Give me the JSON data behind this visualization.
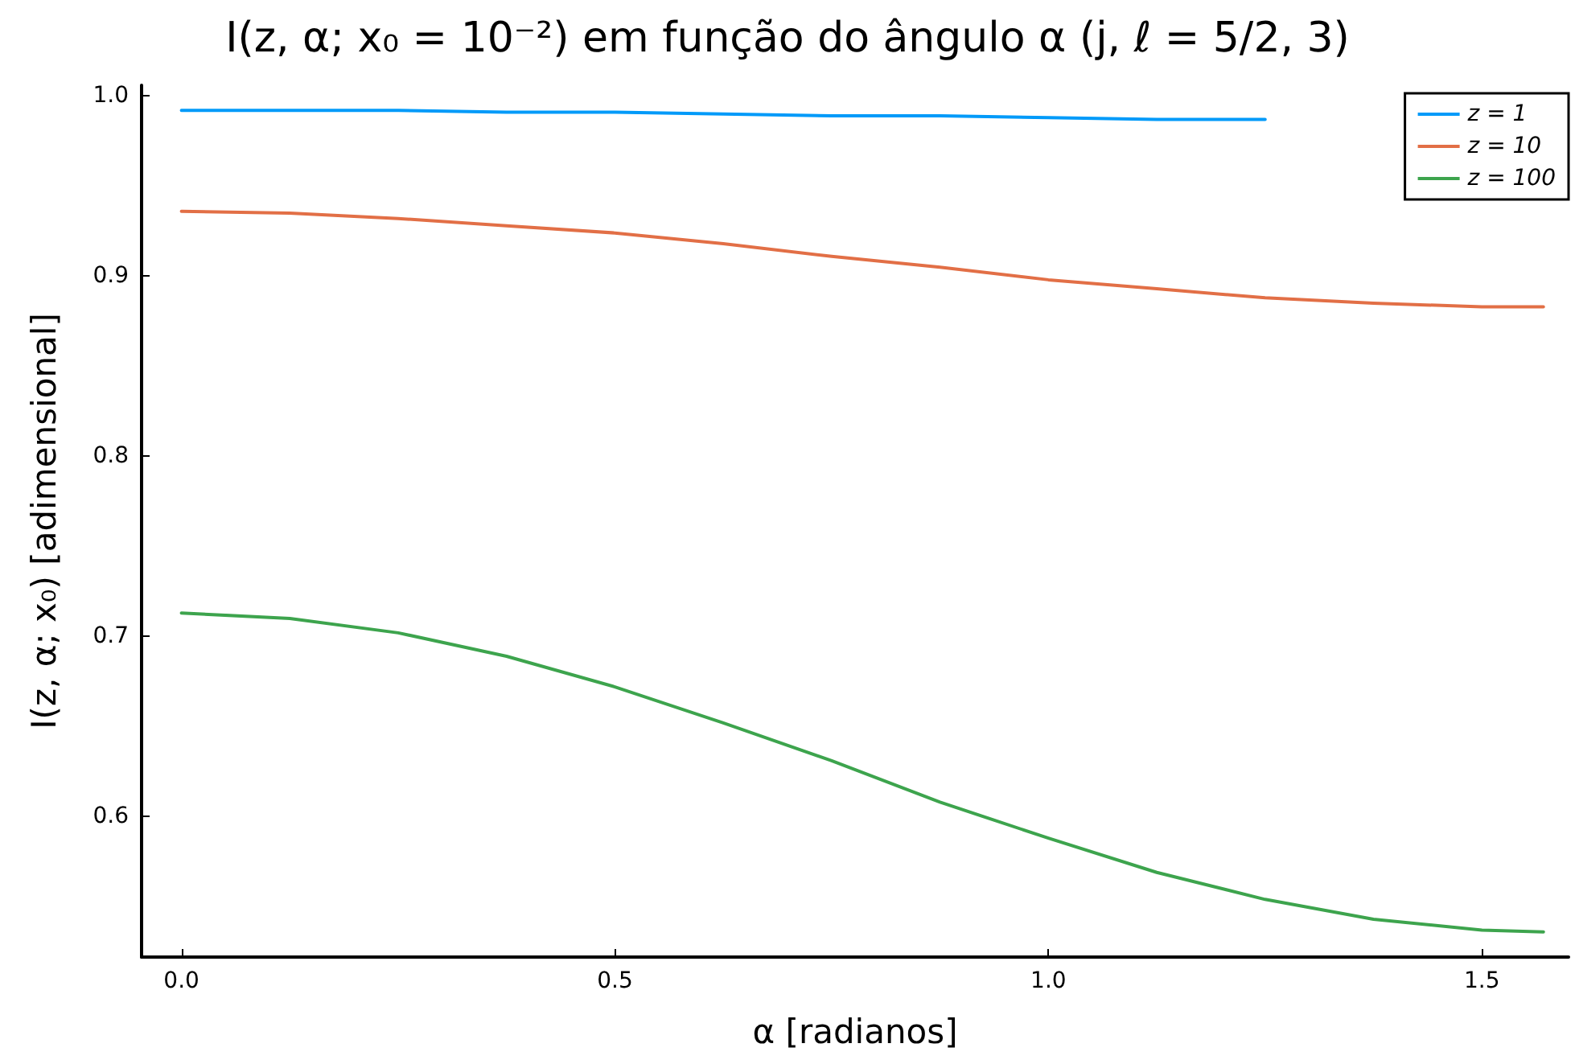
{
  "chart_data": {
    "type": "line",
    "title": "I(z, α; x₀ = 10⁻²) em função do ângulo α (j, ℓ = 5/2, 3)",
    "xlabel": "α [radianos]",
    "ylabel": "I(z, α; x₀) [adimensional]",
    "x": [
      0,
      0.125,
      0.25,
      0.375,
      0.5,
      0.625,
      0.75,
      0.875,
      1.0,
      1.125,
      1.25,
      1.375,
      1.5,
      1.571
    ],
    "series": [
      {
        "name": "z = 1",
        "color": "#009af9",
        "values": [
          0.992,
          0.992,
          0.992,
          0.991,
          0.991,
          0.99,
          0.989,
          0.989,
          0.988,
          0.987,
          0.987,
          null,
          null,
          null
        ]
      },
      {
        "name": "z = 10",
        "color": "#e26f46",
        "values": [
          0.936,
          0.935,
          0.932,
          0.928,
          0.924,
          0.918,
          0.911,
          0.905,
          0.898,
          0.893,
          0.888,
          0.885,
          0.883,
          0.883
        ]
      },
      {
        "name": "z = 100",
        "color": "#3da44d",
        "values": [
          0.713,
          0.71,
          0.702,
          0.689,
          0.672,
          0.652,
          0.631,
          0.608,
          0.588,
          0.569,
          0.554,
          0.543,
          0.537,
          0.536
        ]
      }
    ],
    "xlim": [
      -0.046,
      1.6
    ],
    "ylim": [
      0.522,
      1.006
    ],
    "xticks": [
      {
        "value": 0,
        "label": "0.0"
      },
      {
        "value": 0.5,
        "label": "0.5"
      },
      {
        "value": 1,
        "label": "1.0"
      },
      {
        "value": 1.5,
        "label": "1.5"
      }
    ],
    "yticks": [
      {
        "value": 0.6,
        "label": "0.6"
      },
      {
        "value": 0.7,
        "label": "0.7"
      },
      {
        "value": 0.8,
        "label": "0.8"
      },
      {
        "value": 0.9,
        "label": "0.9"
      },
      {
        "value": 1,
        "label": "1.0"
      }
    ],
    "grid": false,
    "legend": "top right",
    "marker": "none",
    "line_style": "solid"
  }
}
